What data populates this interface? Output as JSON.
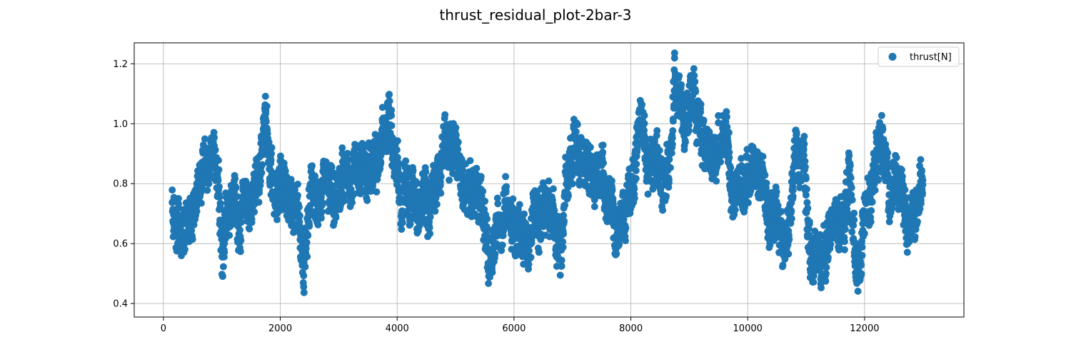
{
  "chart_data": {
    "type": "scatter",
    "title": "thrust_residual_plot-2bar-3",
    "xlabel": "",
    "ylabel": "",
    "xlim": [
      -500,
      13700
    ],
    "ylim": [
      0.355,
      1.27
    ],
    "xticks": [
      0,
      2000,
      4000,
      6000,
      8000,
      10000,
      12000
    ],
    "xtick_labels": [
      "0",
      "2000",
      "4000",
      "6000",
      "8000",
      "10000",
      "12000"
    ],
    "yticks": [
      0.4,
      0.6,
      0.8,
      1.0,
      1.2
    ],
    "ytick_labels": [
      "0.4",
      "0.6",
      "0.8",
      "1.0",
      "1.2"
    ],
    "grid": true,
    "legend_position": "top-right",
    "marker_color": "#1f77b4",
    "series": [
      {
        "name": "thrust[N]",
        "color": "#1f77b4",
        "x_range": [
          150,
          13000
        ],
        "envelope": [
          [
            150,
            0.72
          ],
          [
            250,
            0.62
          ],
          [
            350,
            0.68
          ],
          [
            450,
            0.63
          ],
          [
            550,
            0.72
          ],
          [
            700,
            0.92
          ],
          [
            850,
            0.9
          ],
          [
            950,
            0.78
          ],
          [
            1000,
            0.58
          ],
          [
            1100,
            0.74
          ],
          [
            1250,
            0.72
          ],
          [
            1400,
            0.71
          ],
          [
            1550,
            0.77
          ],
          [
            1650,
            0.85
          ],
          [
            1750,
            0.96
          ],
          [
            1900,
            0.76
          ],
          [
            2000,
            0.85
          ],
          [
            2100,
            0.7
          ],
          [
            2200,
            0.72
          ],
          [
            2300,
            0.7
          ],
          [
            2400,
            0.56
          ],
          [
            2500,
            0.72
          ],
          [
            2650,
            0.73
          ],
          [
            2800,
            0.8
          ],
          [
            2900,
            0.68
          ],
          [
            3050,
            0.88
          ],
          [
            3200,
            0.84
          ],
          [
            3350,
            0.87
          ],
          [
            3500,
            0.83
          ],
          [
            3650,
            0.85
          ],
          [
            3850,
            1.03
          ],
          [
            3950,
            0.9
          ],
          [
            4100,
            0.8
          ],
          [
            4300,
            0.76
          ],
          [
            4500,
            0.74
          ],
          [
            4650,
            0.76
          ],
          [
            4800,
            0.95
          ],
          [
            4900,
            0.96
          ],
          [
            5050,
            0.86
          ],
          [
            5200,
            0.82
          ],
          [
            5350,
            0.76
          ],
          [
            5500,
            0.7
          ],
          [
            5600,
            0.5
          ],
          [
            5750,
            0.72
          ],
          [
            5900,
            0.8
          ],
          [
            6000,
            0.76
          ],
          [
            6150,
            0.6
          ],
          [
            6250,
            0.53
          ],
          [
            6350,
            0.7
          ],
          [
            6500,
            0.76
          ],
          [
            6650,
            0.73
          ],
          [
            6800,
            0.62
          ],
          [
            6950,
            0.86
          ],
          [
            7100,
            0.92
          ],
          [
            7250,
            0.86
          ],
          [
            7400,
            0.86
          ],
          [
            7550,
            0.8
          ],
          [
            7700,
            0.7
          ],
          [
            7850,
            0.7
          ],
          [
            8000,
            0.82
          ],
          [
            8150,
            1.02
          ],
          [
            8300,
            0.84
          ],
          [
            8450,
            0.88
          ],
          [
            8600,
            0.8
          ],
          [
            8750,
            1.12
          ],
          [
            8900,
            1.02
          ],
          [
            9050,
            1.06
          ],
          [
            9200,
            0.92
          ],
          [
            9350,
            0.88
          ],
          [
            9500,
            0.86
          ],
          [
            9650,
            0.9
          ],
          [
            9750,
            0.76
          ],
          [
            9900,
            0.8
          ],
          [
            10050,
            0.82
          ],
          [
            10200,
            0.9
          ],
          [
            10350,
            0.68
          ],
          [
            10500,
            0.66
          ],
          [
            10650,
            0.58
          ],
          [
            10800,
            0.84
          ],
          [
            10950,
            0.88
          ],
          [
            11050,
            0.58
          ],
          [
            11200,
            0.56
          ],
          [
            11350,
            0.56
          ],
          [
            11500,
            0.66
          ],
          [
            11650,
            0.64
          ],
          [
            11750,
            0.78
          ],
          [
            11850,
            0.48
          ],
          [
            12000,
            0.66
          ],
          [
            12100,
            0.66
          ],
          [
            12200,
            0.92
          ],
          [
            12350,
            0.9
          ],
          [
            12450,
            0.68
          ],
          [
            12550,
            0.72
          ],
          [
            12650,
            0.7
          ],
          [
            12800,
            0.62
          ],
          [
            12900,
            0.73
          ],
          [
            13000,
            0.76
          ]
        ]
      }
    ]
  }
}
